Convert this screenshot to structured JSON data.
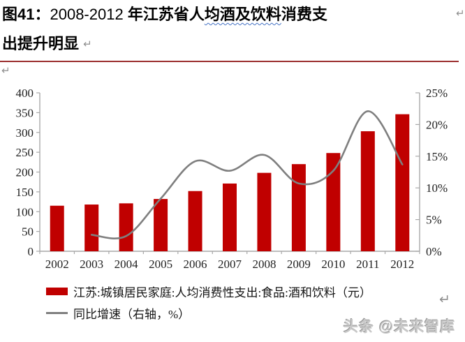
{
  "page": {
    "title": {
      "prefix": "图41：",
      "range": "2008-2012",
      "mid": " 年江苏省人",
      "wavy": "均酒及饮料",
      "line1_tail": "消费支",
      "line2": "出提升明显"
    },
    "icons": {
      "return_arrow": "↵"
    },
    "watermark": "头条 @未来智库",
    "colors": {
      "title_rule": "#9C2F2F",
      "bar_red": "#C00000",
      "line_gray": "#7F7F7F",
      "axis_gray": "#A8A8A8",
      "axis_text": "#1f1f1f",
      "wavy_underline": "#4472C4",
      "watermark_gray": "#C9C9C9"
    }
  },
  "chart_data": {
    "type": "combo",
    "categories": [
      "2002",
      "2003",
      "2004",
      "2005",
      "2006",
      "2007",
      "2008",
      "2009",
      "2010",
      "2011",
      "2012"
    ],
    "series": [
      {
        "name": "江苏:城镇居民家庭:人均消费性支出:食品:酒和饮料（元）",
        "type": "bar",
        "axis": "left",
        "color": "#C00000",
        "values": [
          115,
          118,
          121,
          132,
          152,
          171,
          198,
          220,
          248,
          303,
          346
        ]
      },
      {
        "name": "同比增速（右轴，%）",
        "type": "line",
        "axis": "right",
        "color": "#7F7F7F",
        "values": [
          null,
          2.6,
          2.4,
          8.3,
          14.2,
          12.7,
          15.2,
          10.7,
          12.7,
          22.1,
          13.7
        ]
      }
    ],
    "left_axis": {
      "min": 0,
      "max": 400,
      "step": 50,
      "tick_labels": [
        "0",
        "50",
        "100",
        "150",
        "200",
        "250",
        "300",
        "350",
        "400"
      ]
    },
    "right_axis": {
      "min": 0,
      "max": 25,
      "step": 5,
      "tick_labels": [
        "0%",
        "5%",
        "10%",
        "15%",
        "20%",
        "25%"
      ]
    },
    "grid": false,
    "legend_position": "bottom-left"
  }
}
